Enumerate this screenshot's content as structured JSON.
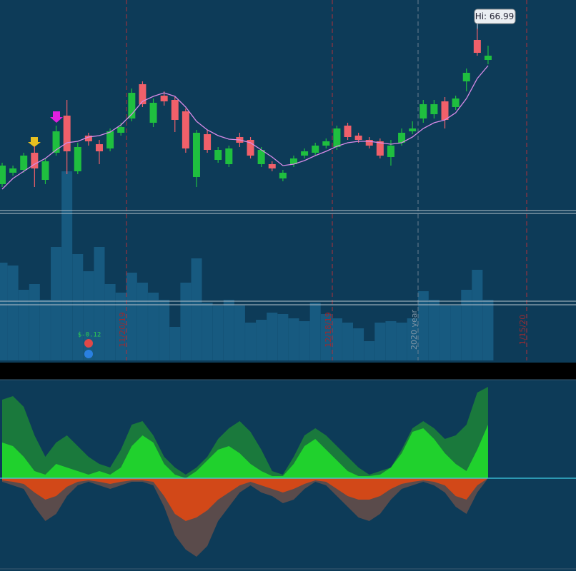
{
  "chart_data": {
    "type": "candlestick",
    "ylim": [
      54.25,
      69
    ],
    "up_color": "#1fbf3f",
    "down_color": "#f0606a",
    "candles": {
      "open": [
        56.1,
        56.9,
        57.1,
        58.3,
        56.4,
        58.3,
        60.9,
        57.0,
        59.5,
        58.9,
        58.6,
        59.7,
        60.7,
        63.1,
        60.4,
        62.3,
        62.0,
        61.2,
        56.6,
        59.6,
        57.8,
        57.5,
        59.4,
        59.2,
        57.5,
        57.5,
        56.5,
        57.5,
        58.1,
        58.3,
        58.8,
        58.7,
        60.2,
        59.5,
        59.2,
        59.1,
        58.0,
        59.0,
        59.8,
        60.7,
        61.0,
        61.9,
        61.5,
        63.3,
        66.2,
        64.8
      ],
      "high": [
        57.6,
        57.4,
        58.3,
        58.75,
        57.9,
        60.2,
        62.0,
        59.0,
        59.7,
        59.2,
        60.0,
        60.4,
        62.8,
        63.3,
        62.1,
        62.6,
        62.2,
        61.4,
        59.9,
        59.9,
        58.7,
        58.8,
        59.7,
        59.4,
        58.7,
        57.7,
        57.1,
        58.1,
        58.6,
        59.0,
        59.3,
        60.2,
        60.4,
        59.7,
        59.4,
        59.3,
        59.2,
        60.0,
        60.5,
        62.0,
        62.0,
        62.2,
        62.3,
        64.2,
        66.99,
        65.8
      ],
      "low": [
        55.9,
        56.7,
        56.9,
        55.9,
        56.1,
        58.1,
        56.8,
        56.8,
        58.8,
        57.5,
        58.4,
        59.5,
        60.5,
        61.5,
        60.1,
        61.6,
        59.75,
        58.3,
        55.9,
        58.3,
        57.6,
        57.3,
        58.7,
        57.9,
        57.3,
        57.0,
        56.3,
        57.3,
        57.9,
        58.1,
        58.6,
        58.5,
        59.2,
        59.0,
        58.6,
        57.9,
        57.4,
        58.8,
        59.6,
        60.4,
        60.7,
        60.0,
        61.3,
        62.6,
        65.1,
        64.5
      ],
      "close": [
        57.4,
        57.2,
        58.1,
        57.2,
        57.7,
        59.8,
        58.4,
        58.7,
        59.1,
        58.4,
        59.8,
        60.1,
        62.5,
        61.7,
        61.8,
        61.9,
        60.6,
        58.6,
        59.7,
        58.5,
        58.5,
        58.6,
        59.0,
        58.1,
        58.5,
        57.2,
        56.9,
        57.9,
        58.4,
        58.8,
        59.1,
        60.0,
        59.4,
        59.2,
        58.8,
        58.1,
        58.8,
        59.7,
        60.0,
        61.7,
        61.7,
        60.6,
        62.1,
        63.9,
        65.3,
        65.1
      ]
    },
    "moving_average": {
      "color": "#d98be8",
      "values": [
        55.75,
        56.5,
        57.0,
        57.5,
        57.9,
        58.5,
        59.0,
        59.1,
        59.4,
        59.5,
        59.75,
        60.25,
        61.0,
        61.9,
        62.25,
        62.5,
        62.25,
        61.5,
        60.5,
        59.9,
        59.5,
        59.25,
        59.2,
        59.0,
        58.5,
        58.0,
        57.4,
        57.5,
        57.75,
        58.1,
        58.4,
        58.75,
        59.0,
        59.1,
        59.1,
        59.0,
        58.9,
        59.0,
        59.4,
        60.0,
        60.4,
        60.6,
        61.1,
        62.1,
        63.5,
        64.4
      ]
    },
    "volume": {
      "color": "#175a80",
      "ylim": [
        0,
        205
      ],
      "values": [
        137,
        133,
        99,
        107,
        85,
        159,
        265,
        149,
        125,
        159,
        107,
        95,
        123,
        109,
        95,
        85,
        47,
        109,
        143,
        81,
        77,
        85,
        77,
        53,
        57,
        67,
        65,
        59,
        55,
        81,
        65,
        59,
        53,
        45,
        27,
        53,
        55,
        53,
        59,
        97,
        85,
        77,
        77,
        99,
        127,
        85
      ]
    },
    "oscillator": {
      "ylim": [
        -127,
        137
      ],
      "series": [
        {
          "color": "#1e8a36",
          "values": [
            110,
            115,
            100,
            60,
            30,
            50,
            60,
            45,
            30,
            20,
            15,
            40,
            75,
            80,
            60,
            30,
            15,
            5,
            15,
            30,
            55,
            70,
            80,
            65,
            40,
            10,
            5,
            30,
            60,
            70,
            60,
            45,
            30,
            15,
            5,
            10,
            15,
            40,
            70,
            80,
            70,
            55,
            60,
            75,
            120,
            128
          ]
        },
        {
          "color": "#22e02a",
          "values": [
            50,
            45,
            30,
            10,
            5,
            20,
            15,
            10,
            5,
            10,
            5,
            15,
            45,
            60,
            50,
            20,
            5,
            0,
            10,
            25,
            40,
            45,
            35,
            20,
            10,
            3,
            3,
            20,
            45,
            55,
            40,
            25,
            10,
            3,
            3,
            5,
            15,
            35,
            65,
            70,
            55,
            35,
            20,
            10,
            40,
            75
          ]
        },
        {
          "color": "#6e5048",
          "values": [
            -5,
            -10,
            -15,
            -40,
            -60,
            -50,
            -25,
            -10,
            -5,
            -10,
            -15,
            -10,
            -5,
            -5,
            -10,
            -40,
            -80,
            -100,
            -110,
            -95,
            -60,
            -40,
            -20,
            -10,
            -20,
            -25,
            -35,
            -30,
            -15,
            -5,
            -10,
            -25,
            -40,
            -55,
            -60,
            -50,
            -30,
            -15,
            -10,
            -5,
            -10,
            -20,
            -40,
            -50,
            -20,
            0
          ]
        },
        {
          "color": "#e8480f",
          "values": [
            -3,
            -5,
            -8,
            -20,
            -30,
            -25,
            -12,
            -5,
            -3,
            -5,
            -8,
            -5,
            -3,
            -3,
            -5,
            -25,
            -50,
            -60,
            -55,
            -45,
            -30,
            -20,
            -10,
            -5,
            -10,
            -15,
            -20,
            -15,
            -8,
            -3,
            -5,
            -15,
            -25,
            -30,
            -30,
            -25,
            -15,
            -8,
            -5,
            -3,
            -5,
            -10,
            -25,
            -30,
            -10,
            0
          ]
        }
      ]
    },
    "high_label": "Hi: 66.99",
    "annotation": "$-0.12",
    "date_markers": [
      "11/20/19",
      "12/18/19",
      "2020 year",
      "1/15/20"
    ]
  }
}
